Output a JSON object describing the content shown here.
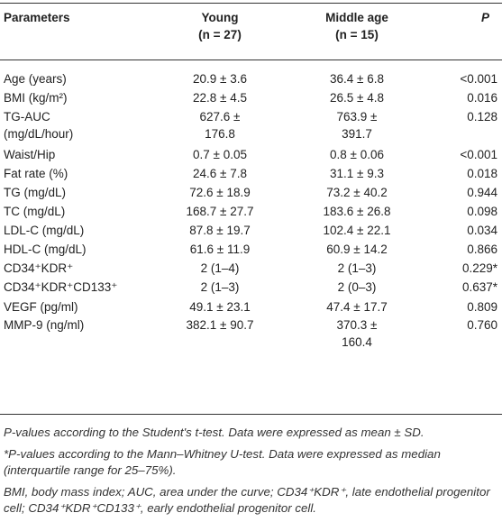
{
  "table": {
    "headers": {
      "parameters": "Parameters",
      "young": "Young",
      "young_n": "(n = 27)",
      "middle": "Middle age",
      "middle_n": "(n = 15)",
      "p": "P"
    },
    "rows": [
      {
        "param": "Age (years)",
        "young": "20.9 ± 3.6",
        "middle": "36.4 ± 6.8",
        "p": "<0.001"
      },
      {
        "param": "BMI (kg/m²)",
        "young": "22.8 ± 4.5",
        "middle": "26.5 ± 4.8",
        "p": "0.016"
      },
      {
        "param": "TG-AUC",
        "param2": "(mg/dL/hour)",
        "young": "627.6 ±",
        "young2": "176.8",
        "middle": "763.9 ±",
        "middle2": "391.7",
        "p": "0.128"
      },
      {
        "param": "Waist/Hip",
        "young": "0.7 ± 0.05",
        "middle": "0.8 ± 0.06",
        "p": "<0.001"
      },
      {
        "param": "Fat rate (%)",
        "young": "24.6 ± 7.8",
        "middle": "31.1 ± 9.3",
        "p": "0.018"
      },
      {
        "param": "TG (mg/dL)",
        "young": "72.6 ± 18.9",
        "middle": "73.2 ± 40.2",
        "p": "0.944"
      },
      {
        "param": "TC (mg/dL)",
        "young": "168.7 ± 27.7",
        "middle": "183.6 ± 26.8",
        "p": "0.098"
      },
      {
        "param": "LDL-C (mg/dL)",
        "young": "87.8 ± 19.7",
        "middle": "102.4 ± 22.1",
        "p": "0.034"
      },
      {
        "param": "HDL-C (mg/dL)",
        "young": "61.6 ± 11.9",
        "middle": "60.9 ± 14.2",
        "p": "0.866"
      },
      {
        "param": "CD34⁺KDR⁺",
        "young": "2 (1–4)",
        "middle": "2 (1–3)",
        "p": "0.229*"
      },
      {
        "param": "CD34⁺KDR⁺CD133⁺",
        "young": "2 (1–3)",
        "middle": "2 (0–3)",
        "p": "0.637*"
      },
      {
        "param": "VEGF (pg/ml)",
        "young": "49.1 ± 23.1",
        "middle": "47.4 ± 17.7",
        "p": "0.809"
      },
      {
        "param": "MMP-9 (ng/ml)",
        "young": "382.1 ± 90.7",
        "middle": "370.3 ±",
        "middle2": "160.4",
        "p": "0.760"
      }
    ]
  },
  "footnotes": {
    "f1": "P-values according to the Student's t-test. Data were expressed as mean ± SD.",
    "f2": "*P-values according to the Mann–Whitney U-test. Data were expressed as median (interquartile range for 25–75%).",
    "f3": "BMI, body mass index; AUC, area under the curve; CD34⁺KDR⁺, late endothelial progenitor cell; CD34⁺KDR⁺CD133⁺, early endothelial progenitor cell."
  }
}
